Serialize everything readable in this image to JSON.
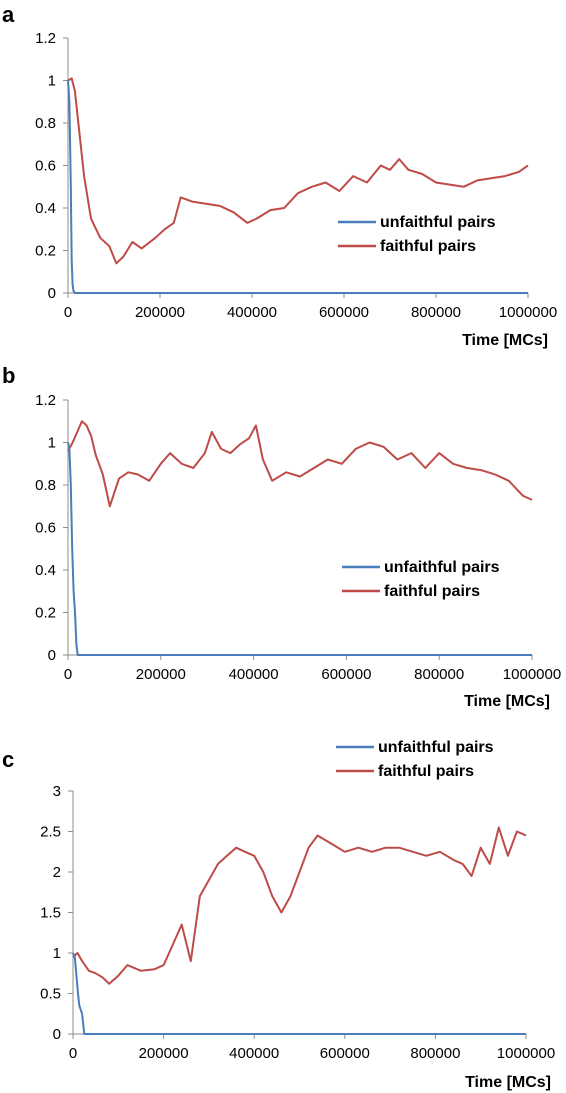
{
  "colors": {
    "unfaithful": "#4a7ebb",
    "faithful": "#be4b48",
    "axis": "#8c8c8c"
  },
  "chart_data": [
    {
      "type": "line",
      "panel_label": "a",
      "xlabel": "Time [MCs]",
      "ylabel": "",
      "xlim": [
        0,
        1000000
      ],
      "ylim": [
        0,
        1.2
      ],
      "x_ticks": [
        0,
        200000,
        400000,
        600000,
        800000,
        1000000
      ],
      "x_tick_labels": [
        "0",
        "200000",
        "400000",
        "600000",
        "800000",
        "1000000"
      ],
      "y_ticks": [
        0,
        0.2,
        0.4,
        0.6,
        0.8,
        1,
        1.2
      ],
      "y_tick_labels": [
        "0",
        "0.2",
        "0.4",
        "0.6",
        "0.8",
        "1",
        "1.2"
      ],
      "legend_position": "right",
      "series": [
        {
          "name": "unfaithful pairs",
          "color": "#4a7ebb",
          "x": [
            0,
            3000,
            6000,
            8000,
            10000,
            12000,
            15000,
            1000000
          ],
          "y": [
            1,
            0.9,
            0.5,
            0.15,
            0.04,
            0.01,
            0,
            0
          ]
        },
        {
          "name": "faithful pairs",
          "color": "#be4b48",
          "x": [
            0,
            8000,
            15000,
            25000,
            35000,
            50000,
            70000,
            90000,
            105000,
            120000,
            140000,
            160000,
            190000,
            210000,
            230000,
            245000,
            270000,
            300000,
            330000,
            360000,
            390000,
            410000,
            440000,
            470000,
            500000,
            530000,
            560000,
            590000,
            620000,
            650000,
            680000,
            700000,
            720000,
            740000,
            770000,
            800000,
            830000,
            860000,
            890000,
            920000,
            950000,
            980000,
            1000000
          ],
          "y": [
            1.0,
            1.01,
            0.95,
            0.75,
            0.55,
            0.35,
            0.26,
            0.22,
            0.14,
            0.17,
            0.24,
            0.21,
            0.26,
            0.3,
            0.33,
            0.45,
            0.43,
            0.42,
            0.41,
            0.38,
            0.33,
            0.35,
            0.39,
            0.4,
            0.47,
            0.5,
            0.52,
            0.48,
            0.55,
            0.52,
            0.6,
            0.58,
            0.63,
            0.58,
            0.56,
            0.52,
            0.51,
            0.5,
            0.53,
            0.54,
            0.55,
            0.57,
            0.6
          ]
        }
      ]
    },
    {
      "type": "line",
      "panel_label": "b",
      "xlabel": "Time [MCs]",
      "ylabel": "",
      "xlim": [
        0,
        1000000
      ],
      "ylim": [
        0,
        1.2
      ],
      "x_ticks": [
        0,
        200000,
        400000,
        600000,
        800000,
        1000000
      ],
      "x_tick_labels": [
        "0",
        "200000",
        "400000",
        "600000",
        "800000",
        "1000000"
      ],
      "y_ticks": [
        0,
        0.2,
        0.4,
        0.6,
        0.8,
        1,
        1.2
      ],
      "y_tick_labels": [
        "0",
        "0.2",
        "0.4",
        "0.6",
        "0.8",
        "1",
        "1.2"
      ],
      "legend_position": "right",
      "series": [
        {
          "name": "unfaithful pairs",
          "color": "#4a7ebb",
          "x": [
            0,
            3000,
            6000,
            9000,
            12000,
            15000,
            18000,
            21000,
            1000000
          ],
          "y": [
            1,
            0.97,
            0.8,
            0.5,
            0.3,
            0.2,
            0.05,
            0,
            0
          ]
        },
        {
          "name": "faithful pairs",
          "color": "#be4b48",
          "x": [
            0,
            10000,
            20000,
            30000,
            40000,
            50000,
            60000,
            75000,
            90000,
            110000,
            130000,
            150000,
            175000,
            200000,
            220000,
            245000,
            270000,
            295000,
            310000,
            330000,
            350000,
            370000,
            390000,
            405000,
            420000,
            440000,
            470000,
            500000,
            530000,
            560000,
            590000,
            620000,
            650000,
            680000,
            710000,
            740000,
            770000,
            800000,
            830000,
            860000,
            890000,
            920000,
            950000,
            980000,
            1000000
          ],
          "y": [
            0.96,
            1.0,
            1.05,
            1.1,
            1.08,
            1.03,
            0.94,
            0.85,
            0.7,
            0.83,
            0.86,
            0.85,
            0.82,
            0.9,
            0.95,
            0.9,
            0.88,
            0.95,
            1.05,
            0.97,
            0.95,
            0.99,
            1.02,
            1.08,
            0.92,
            0.82,
            0.86,
            0.84,
            0.88,
            0.92,
            0.9,
            0.97,
            1.0,
            0.98,
            0.92,
            0.95,
            0.88,
            0.95,
            0.9,
            0.88,
            0.87,
            0.85,
            0.82,
            0.75,
            0.73
          ]
        }
      ]
    },
    {
      "type": "line",
      "panel_label": "c",
      "xlabel": "Time [MCs]",
      "ylabel": "",
      "xlim": [
        0,
        1000000
      ],
      "ylim": [
        0,
        3
      ],
      "x_ticks": [
        0,
        200000,
        400000,
        600000,
        800000,
        1000000
      ],
      "x_tick_labels": [
        "0",
        "200000",
        "400000",
        "600000",
        "800000",
        "1000000"
      ],
      "y_ticks": [
        0,
        0.5,
        1,
        1.5,
        2,
        2.5,
        3
      ],
      "y_tick_labels": [
        "0",
        "0.5",
        "1",
        "1.5",
        "2",
        "2.5",
        "3"
      ],
      "legend_position": "right",
      "series": [
        {
          "name": "unfaithful pairs",
          "color": "#4a7ebb",
          "x": [
            0,
            4000,
            8000,
            11000,
            14000,
            17000,
            20000,
            23000,
            25000,
            1000000
          ],
          "y": [
            1,
            0.95,
            0.7,
            0.5,
            0.35,
            0.3,
            0.25,
            0.1,
            0,
            0
          ]
        },
        {
          "name": "faithful pairs",
          "color": "#be4b48",
          "x": [
            0,
            10000,
            20000,
            35000,
            50000,
            65000,
            80000,
            100000,
            120000,
            150000,
            180000,
            200000,
            220000,
            240000,
            260000,
            280000,
            300000,
            320000,
            340000,
            360000,
            380000,
            400000,
            420000,
            440000,
            460000,
            480000,
            500000,
            520000,
            540000,
            570000,
            600000,
            630000,
            660000,
            690000,
            720000,
            750000,
            780000,
            810000,
            840000,
            860000,
            880000,
            900000,
            920000,
            940000,
            960000,
            980000,
            1000000
          ],
          "y": [
            0.95,
            1.0,
            0.9,
            0.78,
            0.75,
            0.7,
            0.62,
            0.72,
            0.85,
            0.78,
            0.8,
            0.85,
            1.1,
            1.35,
            0.9,
            1.7,
            1.9,
            2.1,
            2.2,
            2.3,
            2.25,
            2.2,
            2.0,
            1.7,
            1.5,
            1.7,
            2.0,
            2.3,
            2.45,
            2.35,
            2.25,
            2.3,
            2.25,
            2.3,
            2.3,
            2.25,
            2.2,
            2.25,
            2.15,
            2.1,
            1.95,
            2.3,
            2.1,
            2.55,
            2.2,
            2.5,
            2.45
          ]
        }
      ]
    }
  ]
}
